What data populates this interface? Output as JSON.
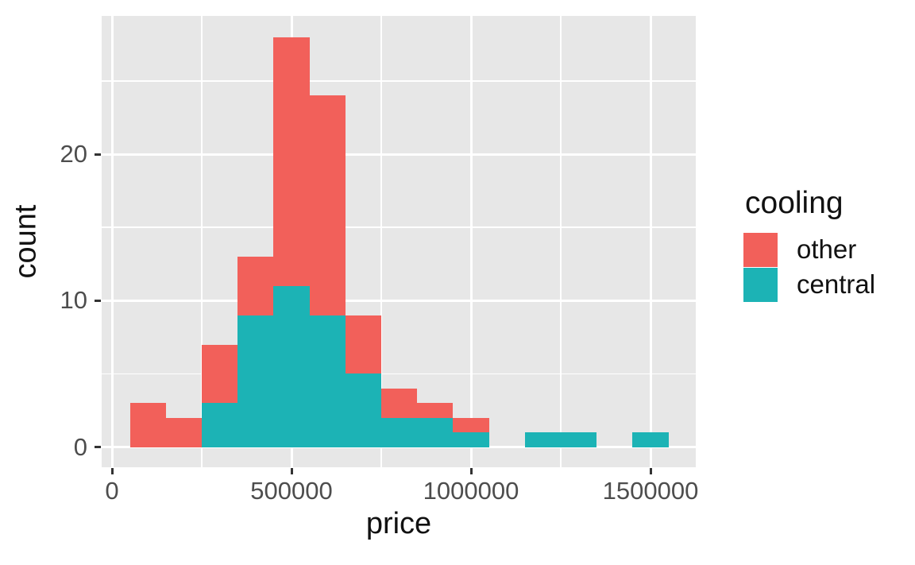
{
  "chart_data": {
    "type": "bar",
    "subtype": "stacked-histogram",
    "title": "",
    "xlabel": "price",
    "ylabel": "count",
    "legend": {
      "title": "cooling",
      "position": "right",
      "entries": [
        {
          "label": "other",
          "color": "#F2605A"
        },
        {
          "label": "central",
          "color": "#1CB3B5"
        }
      ]
    },
    "panel_background": "#E7E7E7",
    "grid": "on",
    "binwidth": 100000,
    "xlim": [
      0,
      1550000
    ],
    "ylim": [
      0,
      28
    ],
    "x_axis": {
      "major_ticks": [
        0,
        500000,
        1000000,
        1500000
      ],
      "major_tick_labels": [
        "0",
        "500000",
        "1000000",
        "1500000"
      ],
      "minor_ticks": [
        250000,
        750000,
        1250000
      ]
    },
    "y_axis": {
      "major_ticks": [
        0,
        10,
        20
      ],
      "major_tick_labels": [
        "0",
        "10",
        "20"
      ],
      "minor_ticks": [
        5,
        15,
        25
      ]
    },
    "bins": [
      {
        "x0": 50000,
        "x1": 150000,
        "central": 0,
        "other": 3
      },
      {
        "x0": 150000,
        "x1": 250000,
        "central": 0,
        "other": 2
      },
      {
        "x0": 250000,
        "x1": 350000,
        "central": 3,
        "other": 4
      },
      {
        "x0": 350000,
        "x1": 450000,
        "central": 9,
        "other": 4
      },
      {
        "x0": 450000,
        "x1": 550000,
        "central": 11,
        "other": 17
      },
      {
        "x0": 550000,
        "x1": 650000,
        "central": 9,
        "other": 15
      },
      {
        "x0": 650000,
        "x1": 750000,
        "central": 5,
        "other": 4
      },
      {
        "x0": 750000,
        "x1": 850000,
        "central": 2,
        "other": 2
      },
      {
        "x0": 850000,
        "x1": 950000,
        "central": 2,
        "other": 1
      },
      {
        "x0": 950000,
        "x1": 1050000,
        "central": 1,
        "other": 1
      },
      {
        "x0": 1050000,
        "x1": 1150000,
        "central": 0,
        "other": 0
      },
      {
        "x0": 1150000,
        "x1": 1250000,
        "central": 1,
        "other": 0
      },
      {
        "x0": 1250000,
        "x1": 1350000,
        "central": 1,
        "other": 0
      },
      {
        "x0": 1350000,
        "x1": 1450000,
        "central": 0,
        "other": 0
      },
      {
        "x0": 1450000,
        "x1": 1550000,
        "central": 1,
        "other": 0
      }
    ]
  }
}
